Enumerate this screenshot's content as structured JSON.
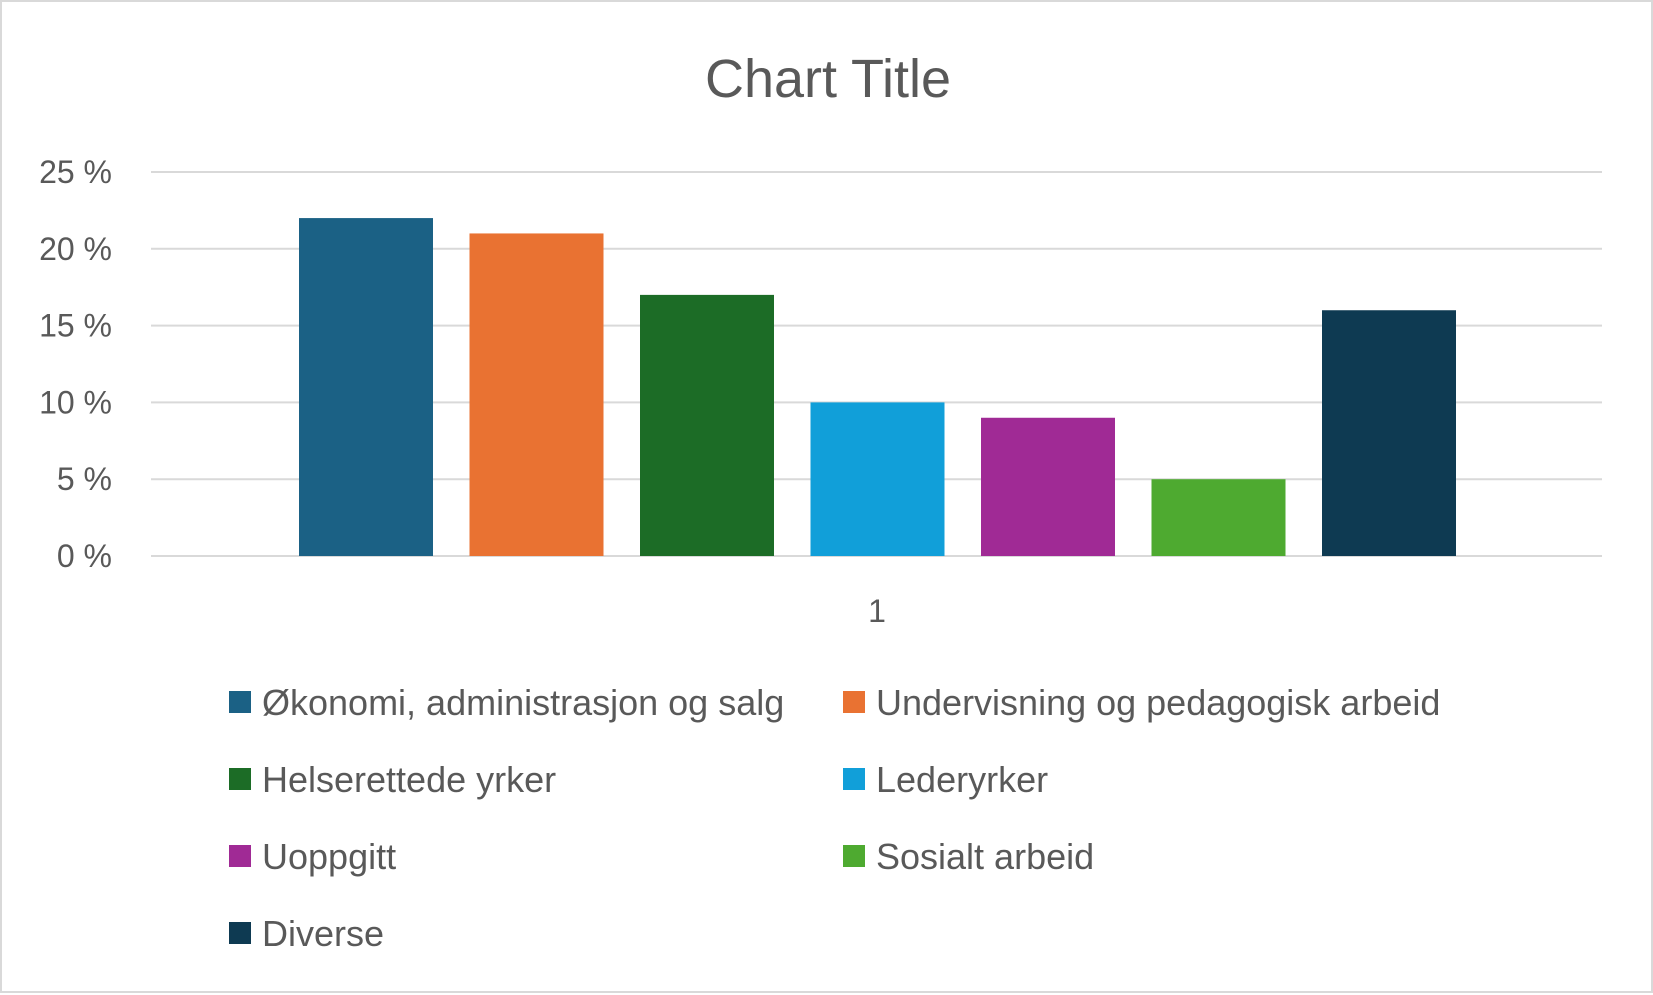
{
  "chart_data": {
    "type": "bar",
    "title": "Chart Title",
    "xlabel": "",
    "ylabel": "",
    "categories": [
      "1"
    ],
    "ylim": [
      0,
      25
    ],
    "yticks": [
      0,
      5,
      10,
      15,
      20,
      25
    ],
    "ytick_labels": [
      "0 %",
      "5 %",
      "10 %",
      "15 %",
      "20 %",
      "25 %"
    ],
    "grid": true,
    "legend_position": "bottom",
    "series": [
      {
        "name": "Økonomi, administrasjon og salg",
        "values": [
          22
        ],
        "color": "#1b6185"
      },
      {
        "name": "Undervisning og pedagogisk arbeid",
        "values": [
          21
        ],
        "color": "#e97232"
      },
      {
        "name": "Helserettede yrker",
        "values": [
          17
        ],
        "color": "#1c6c26"
      },
      {
        "name": "Lederyrker",
        "values": [
          10
        ],
        "color": "#119fd9"
      },
      {
        "name": "Uoppgitt",
        "values": [
          9
        ],
        "color": "#a02a95"
      },
      {
        "name": "Sosialt arbeid",
        "values": [
          5
        ],
        "color": "#4eaa30"
      },
      {
        "name": "Diverse",
        "values": [
          16
        ],
        "color": "#0e3a52"
      }
    ]
  }
}
